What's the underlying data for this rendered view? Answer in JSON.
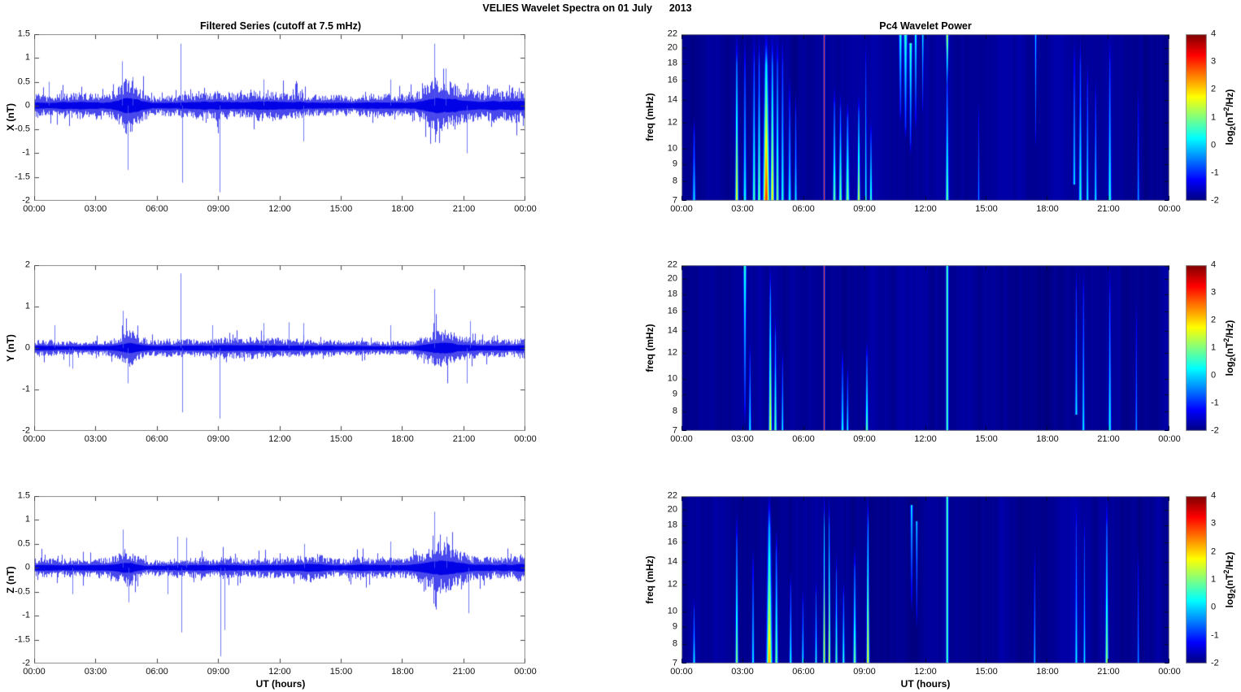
{
  "figure_title": "VELIES Wavelet Spectra on 01 July      2013",
  "left_column_title": "Filtered Series (cutoff at 7.5 mHz)",
  "right_column_title": "Pc4 Wavelet Power",
  "x_axis": {
    "label": "UT (hours)",
    "tick_labels": [
      "00:00",
      "03:00",
      "06:00",
      "09:00",
      "12:00",
      "15:00",
      "18:00",
      "21:00",
      "00:00"
    ],
    "tick_hours": [
      0,
      3,
      6,
      9,
      12,
      15,
      18,
      21,
      24
    ],
    "range_hours": [
      0,
      24
    ]
  },
  "colorbar": {
    "vmin": -2,
    "vmax": 4,
    "tick_labels": [
      "4",
      "3",
      "2",
      "1",
      "0",
      "-1",
      "-2"
    ],
    "tick_values": [
      4,
      3,
      2,
      1,
      0,
      -1,
      -2
    ],
    "label": {
      "pre": "log",
      "sub": "2",
      "mid": "(nT",
      "sup": "2",
      "post": "/Hz)"
    }
  },
  "style_colors": {
    "line_blue": "#0202e6",
    "spike_blue": "#4f5aee",
    "axis_frame": "#8c8c8c",
    "tick_mark": "#444444",
    "spectro_tick": "#000a28"
  },
  "chart_data": [
    {
      "id": "ts-x",
      "type": "line",
      "panel": "timeseries",
      "ylabel": "X (nT)",
      "ylim": [
        -2,
        1.5
      ],
      "ytick_labels": [
        "1.5",
        "1",
        "0.5",
        "0",
        "-0.5",
        "-1",
        "-1.5",
        "-2"
      ],
      "ytick_values": [
        1.5,
        1,
        0.5,
        0,
        -0.5,
        -1,
        -1.5,
        -2
      ],
      "noise_base": 0.115,
      "noise_bursts": [
        {
          "t": 4.6,
          "w": 0.4,
          "gain": 2.6
        },
        {
          "t": 19.9,
          "w": 0.65,
          "gain": 2.4
        },
        {
          "t": 8.6,
          "w": 1.4,
          "gain": 1.25
        },
        {
          "t": 12.9,
          "w": 1.6,
          "gain": 1.2
        },
        {
          "t": 23.0,
          "w": 1.2,
          "gain": 1.3
        }
      ],
      "spikes": [
        {
          "t": 0.7,
          "v": 0.5
        },
        {
          "t": 4.3,
          "v": 0.93
        },
        {
          "t": 4.55,
          "v": -1.35
        },
        {
          "t": 4.8,
          "v": 0.6
        },
        {
          "t": 7.15,
          "v": 1.3
        },
        {
          "t": 7.22,
          "v": -1.62
        },
        {
          "t": 9.05,
          "v": -1.82
        },
        {
          "t": 11.2,
          "v": 0.55
        },
        {
          "t": 13.15,
          "v": -0.75
        },
        {
          "t": 17.4,
          "v": 0.55
        },
        {
          "t": 19.55,
          "v": 1.3
        },
        {
          "t": 20.1,
          "v": 0.78
        },
        {
          "t": 21.15,
          "v": -1.0
        }
      ]
    },
    {
      "id": "ts-y",
      "type": "line",
      "panel": "timeseries",
      "ylabel": "Y (nT)",
      "ylim": [
        -2,
        2
      ],
      "ytick_labels": [
        "2",
        "1",
        "0",
        "-1",
        "-2"
      ],
      "ytick_values": [
        2,
        1,
        0,
        -1,
        -2
      ],
      "noise_base": 0.085,
      "noise_bursts": [
        {
          "t": 4.6,
          "w": 0.4,
          "gain": 2.3
        },
        {
          "t": 19.9,
          "w": 0.65,
          "gain": 2.6
        },
        {
          "t": 8.6,
          "w": 1.4,
          "gain": 1.2
        },
        {
          "t": 13.0,
          "w": 1.6,
          "gain": 1.15
        },
        {
          "t": 23.0,
          "w": 1.2,
          "gain": 1.25
        }
      ],
      "spikes": [
        {
          "t": 1.0,
          "v": 0.55
        },
        {
          "t": 1.7,
          "v": -0.45
        },
        {
          "t": 1.85,
          "v": -0.5
        },
        {
          "t": 4.35,
          "v": 0.9
        },
        {
          "t": 4.55,
          "v": -0.85
        },
        {
          "t": 7.15,
          "v": 1.8
        },
        {
          "t": 7.22,
          "v": -1.55
        },
        {
          "t": 8.7,
          "v": 0.55
        },
        {
          "t": 9.05,
          "v": -1.7
        },
        {
          "t": 11.2,
          "v": 0.6
        },
        {
          "t": 12.45,
          "v": 0.62
        },
        {
          "t": 13.15,
          "v": 0.6
        },
        {
          "t": 17.4,
          "v": 0.55
        },
        {
          "t": 19.55,
          "v": 1.42
        },
        {
          "t": 21.15,
          "v": -0.85
        },
        {
          "t": 21.3,
          "v": 0.65
        }
      ]
    },
    {
      "id": "ts-z",
      "type": "line",
      "panel": "timeseries",
      "ylabel": "Z (nT)",
      "ylim": [
        -2,
        1.5
      ],
      "ytick_labels": [
        "1.5",
        "1",
        "0.5",
        "0",
        "-0.5",
        "-1",
        "-1.5",
        "-2"
      ],
      "ytick_values": [
        1.5,
        1,
        0.5,
        0,
        -0.5,
        -1,
        -1.5,
        -2
      ],
      "noise_base": 0.1,
      "noise_bursts": [
        {
          "t": 4.6,
          "w": 0.4,
          "gain": 2.1
        },
        {
          "t": 19.9,
          "w": 0.65,
          "gain": 2.3
        },
        {
          "t": 8.2,
          "w": 1.4,
          "gain": 1.2
        },
        {
          "t": 13.0,
          "w": 1.6,
          "gain": 1.15
        },
        {
          "t": 23.0,
          "w": 1.2,
          "gain": 1.35
        }
      ],
      "spikes": [
        {
          "t": 1.85,
          "v": -0.55
        },
        {
          "t": 4.35,
          "v": 0.8
        },
        {
          "t": 4.6,
          "v": -0.72
        },
        {
          "t": 6.5,
          "v": -0.55
        },
        {
          "t": 7.0,
          "v": 0.65
        },
        {
          "t": 7.2,
          "v": -1.35
        },
        {
          "t": 7.45,
          "v": 0.63
        },
        {
          "t": 9.1,
          "v": -1.85
        },
        {
          "t": 9.3,
          "v": -1.3
        },
        {
          "t": 13.2,
          "v": 0.5
        },
        {
          "t": 17.4,
          "v": 0.55
        },
        {
          "t": 19.55,
          "v": 1.17
        },
        {
          "t": 20.15,
          "v": 0.65
        },
        {
          "t": 21.2,
          "v": -0.95
        }
      ]
    },
    {
      "id": "sp-x",
      "type": "heatmap",
      "panel": "spectrogram",
      "ylabel": "freq (mHz)",
      "yscale": "log",
      "ylim": [
        7,
        22
      ],
      "ytick_labels": [
        "22",
        "20",
        "18",
        "16",
        "14",
        "12",
        "10",
        "9",
        "8",
        "7"
      ],
      "ytick_values": [
        22,
        20,
        18,
        16,
        14,
        12,
        10,
        9,
        8,
        7
      ],
      "clim": [
        -2,
        4
      ],
      "background_level": -1.86,
      "streaks": [
        {
          "t": 0.6,
          "w": 0.05,
          "v": 0.2,
          "f1": 0.5,
          "f2": 1
        },
        {
          "t": 2.7,
          "w": 0.05,
          "v": 1.9,
          "f1": 0,
          "f2": 1
        },
        {
          "t": 3.1,
          "w": 0.05,
          "v": 0.5,
          "f1": 0,
          "f2": 1
        },
        {
          "t": 3.55,
          "w": 0.05,
          "v": 0.9,
          "f1": 0,
          "f2": 1
        },
        {
          "t": 3.8,
          "w": 0.05,
          "v": 1.1,
          "f1": 0,
          "f2": 1
        },
        {
          "t": 4.15,
          "w": 0.1,
          "v": 3.1,
          "f1": 0,
          "f2": 1
        },
        {
          "t": 4.45,
          "w": 0.06,
          "v": 2.0,
          "f1": 0,
          "f2": 1
        },
        {
          "t": 4.7,
          "w": 0.05,
          "v": 1.2,
          "f1": 0,
          "f2": 1
        },
        {
          "t": 4.95,
          "w": 0.05,
          "v": 0.6,
          "f1": 0,
          "f2": 1
        },
        {
          "t": 5.3,
          "w": 0.05,
          "v": 0.4,
          "f1": 0.25,
          "f2": 1
        },
        {
          "t": 5.6,
          "w": 0.04,
          "v": 0.3,
          "f1": 0.35,
          "f2": 1
        },
        {
          "t": 7.0,
          "w": 0.022,
          "v": 2.9,
          "f1": 0,
          "f2": 1,
          "profile": "uniform"
        },
        {
          "t": 7.5,
          "w": 0.05,
          "v": 1.0,
          "f1": 0.3,
          "f2": 1
        },
        {
          "t": 7.8,
          "w": 0.05,
          "v": 1.1,
          "f1": 0.35,
          "f2": 1
        },
        {
          "t": 8.15,
          "w": 0.06,
          "v": 1.2,
          "f1": 0.4,
          "f2": 1
        },
        {
          "t": 8.7,
          "w": 0.045,
          "v": 1.7,
          "f1": 0.35,
          "f2": 1
        },
        {
          "t": 9.05,
          "w": 0.03,
          "v": 0.6,
          "f1": 0,
          "f2": 1
        },
        {
          "t": 9.3,
          "w": 0.04,
          "v": 0.9,
          "f1": 0.5,
          "f2": 1
        },
        {
          "t": 10.75,
          "w": 0.05,
          "v": 0.5,
          "f1": 0,
          "f2": 0.55,
          "peak": "top"
        },
        {
          "t": 11.0,
          "w": 0.06,
          "v": 0.7,
          "f1": 0,
          "f2": 0.65,
          "peak": "top"
        },
        {
          "t": 11.25,
          "w": 0.05,
          "v": 0.8,
          "f1": 0.05,
          "f2": 0.75,
          "peak": "top"
        },
        {
          "t": 11.5,
          "w": 0.04,
          "v": 0.5,
          "f1": 0,
          "f2": 0.6,
          "peak": "top"
        },
        {
          "t": 11.85,
          "w": 0.03,
          "v": 0.35,
          "f1": 0,
          "f2": 0.5,
          "peak": "top"
        },
        {
          "t": 13.05,
          "w": 0.04,
          "v": 1.7,
          "f1": 0,
          "f2": 0.35,
          "peak": "top"
        },
        {
          "t": 13.05,
          "w": 0.05,
          "v": 1.0,
          "f1": 0.15,
          "f2": 1
        },
        {
          "t": 14.6,
          "w": 0.03,
          "v": -0.3,
          "f1": 0.4,
          "f2": 1
        },
        {
          "t": 17.4,
          "w": 0.03,
          "v": 0.1,
          "f1": 0,
          "f2": 0.7,
          "peak": "top"
        },
        {
          "t": 19.3,
          "w": 0.04,
          "v": 0.3,
          "f1": 0,
          "f2": 0.9
        },
        {
          "t": 19.6,
          "w": 0.05,
          "v": 0.6,
          "f1": 0,
          "f2": 1
        },
        {
          "t": 19.95,
          "w": 0.04,
          "v": 0.4,
          "f1": 0.15,
          "f2": 1
        },
        {
          "t": 20.35,
          "w": 0.04,
          "v": 0.3,
          "f1": 0.25,
          "f2": 1
        },
        {
          "t": 21.05,
          "w": 0.05,
          "v": 0.6,
          "f1": 0,
          "f2": 1
        },
        {
          "t": 22.45,
          "w": 0.035,
          "v": -0.2,
          "f1": 0.3,
          "f2": 1
        }
      ]
    },
    {
      "id": "sp-y",
      "type": "heatmap",
      "panel": "spectrogram",
      "ylabel": "freq (mHz)",
      "yscale": "log",
      "ylim": [
        7,
        22
      ],
      "ytick_labels": [
        "22",
        "20",
        "18",
        "16",
        "14",
        "12",
        "10",
        "9",
        "8",
        "7"
      ],
      "ytick_values": [
        22,
        20,
        18,
        16,
        14,
        12,
        10,
        9,
        8,
        7
      ],
      "clim": [
        -2,
        4
      ],
      "background_level": -1.88,
      "streaks": [
        {
          "t": 3.1,
          "w": 0.05,
          "v": 0.7,
          "f1": 0,
          "f2": 1,
          "peak": "top"
        },
        {
          "t": 3.35,
          "w": 0.04,
          "v": 0.4,
          "f1": 0.45,
          "f2": 1
        },
        {
          "t": 4.35,
          "w": 0.05,
          "v": 1.8,
          "f1": 0,
          "f2": 1
        },
        {
          "t": 4.6,
          "w": 0.045,
          "v": 1.0,
          "f1": 0.3,
          "f2": 1
        },
        {
          "t": 4.95,
          "w": 0.035,
          "v": 0.4,
          "f1": 0.5,
          "f2": 1
        },
        {
          "t": 7.0,
          "w": 0.022,
          "v": 2.9,
          "f1": 0,
          "f2": 1,
          "profile": "uniform"
        },
        {
          "t": 7.9,
          "w": 0.045,
          "v": 0.5,
          "f1": 0.5,
          "f2": 1
        },
        {
          "t": 8.15,
          "w": 0.035,
          "v": 0.4,
          "f1": 0.6,
          "f2": 1
        },
        {
          "t": 9.1,
          "w": 0.045,
          "v": 1.0,
          "f1": 0.45,
          "f2": 1
        },
        {
          "t": 13.05,
          "w": 0.04,
          "v": 0.9,
          "f1": 0,
          "f2": 1,
          "profile": "uniform"
        },
        {
          "t": 19.4,
          "w": 0.04,
          "v": 0.3,
          "f1": 0,
          "f2": 0.9
        },
        {
          "t": 19.75,
          "w": 0.04,
          "v": 0.35,
          "f1": 0,
          "f2": 1
        },
        {
          "t": 21.05,
          "w": 0.045,
          "v": 0.5,
          "f1": 0,
          "f2": 1
        },
        {
          "t": 22.35,
          "w": 0.03,
          "v": -0.2,
          "f1": 0.2,
          "f2": 1
        }
      ]
    },
    {
      "id": "sp-z",
      "type": "heatmap",
      "panel": "spectrogram",
      "ylabel": "freq (mHz)",
      "yscale": "log",
      "ylim": [
        7,
        22
      ],
      "ytick_labels": [
        "22",
        "20",
        "18",
        "16",
        "14",
        "12",
        "10",
        "9",
        "8",
        "7"
      ],
      "ytick_values": [
        22,
        20,
        18,
        16,
        14,
        12,
        10,
        9,
        8,
        7
      ],
      "clim": [
        -2,
        4
      ],
      "background_level": -1.87,
      "streaks": [
        {
          "t": 0.6,
          "w": 0.04,
          "v": 0.4,
          "f1": 0.6,
          "f2": 1
        },
        {
          "t": 2.7,
          "w": 0.045,
          "v": 1.3,
          "f1": 0.1,
          "f2": 1
        },
        {
          "t": 3.5,
          "w": 0.04,
          "v": 0.4,
          "f1": 0.3,
          "f2": 1
        },
        {
          "t": 4.3,
          "w": 0.09,
          "v": 2.3,
          "f1": 0,
          "f2": 1
        },
        {
          "t": 4.65,
          "w": 0.05,
          "v": 1.1,
          "f1": 0.2,
          "f2": 1
        },
        {
          "t": 5.35,
          "w": 0.04,
          "v": 0.5,
          "f1": 0.45,
          "f2": 1
        },
        {
          "t": 5.95,
          "w": 0.035,
          "v": 0.4,
          "f1": 0.55,
          "f2": 1
        },
        {
          "t": 6.6,
          "w": 0.035,
          "v": 0.6,
          "f1": 0.5,
          "f2": 1
        },
        {
          "t": 7.0,
          "w": 0.035,
          "v": 2.1,
          "f1": 0,
          "f2": 1
        },
        {
          "t": 7.25,
          "w": 0.035,
          "v": 1.9,
          "f1": 0,
          "f2": 1
        },
        {
          "t": 7.6,
          "w": 0.04,
          "v": 0.9,
          "f1": 0.35,
          "f2": 1
        },
        {
          "t": 7.95,
          "w": 0.04,
          "v": 0.7,
          "f1": 0.5,
          "f2": 1
        },
        {
          "t": 8.5,
          "w": 0.05,
          "v": 1.1,
          "f1": 0.3,
          "f2": 1
        },
        {
          "t": 9.15,
          "w": 0.045,
          "v": 2.0,
          "f1": 0,
          "f2": 1
        },
        {
          "t": 11.3,
          "w": 0.04,
          "v": 0.35,
          "f1": 0.05,
          "f2": 0.7,
          "peak": "top"
        },
        {
          "t": 11.55,
          "w": 0.03,
          "v": 0.3,
          "f1": 0.15,
          "f2": 0.8,
          "peak": "top"
        },
        {
          "t": 13.05,
          "w": 0.04,
          "v": 0.9,
          "f1": 0,
          "f2": 1,
          "profile": "uniform"
        },
        {
          "t": 17.35,
          "w": 0.03,
          "v": 0.1,
          "f1": 0.3,
          "f2": 1
        },
        {
          "t": 19.4,
          "w": 0.04,
          "v": 0.35,
          "f1": 0,
          "f2": 1
        },
        {
          "t": 19.8,
          "w": 0.035,
          "v": 0.3,
          "f1": 0.1,
          "f2": 1
        },
        {
          "t": 20.9,
          "w": 0.05,
          "v": 1.3,
          "f1": 0,
          "f2": 1
        },
        {
          "t": 22.45,
          "w": 0.03,
          "v": -0.2,
          "f1": 0.3,
          "f2": 1
        }
      ]
    }
  ]
}
